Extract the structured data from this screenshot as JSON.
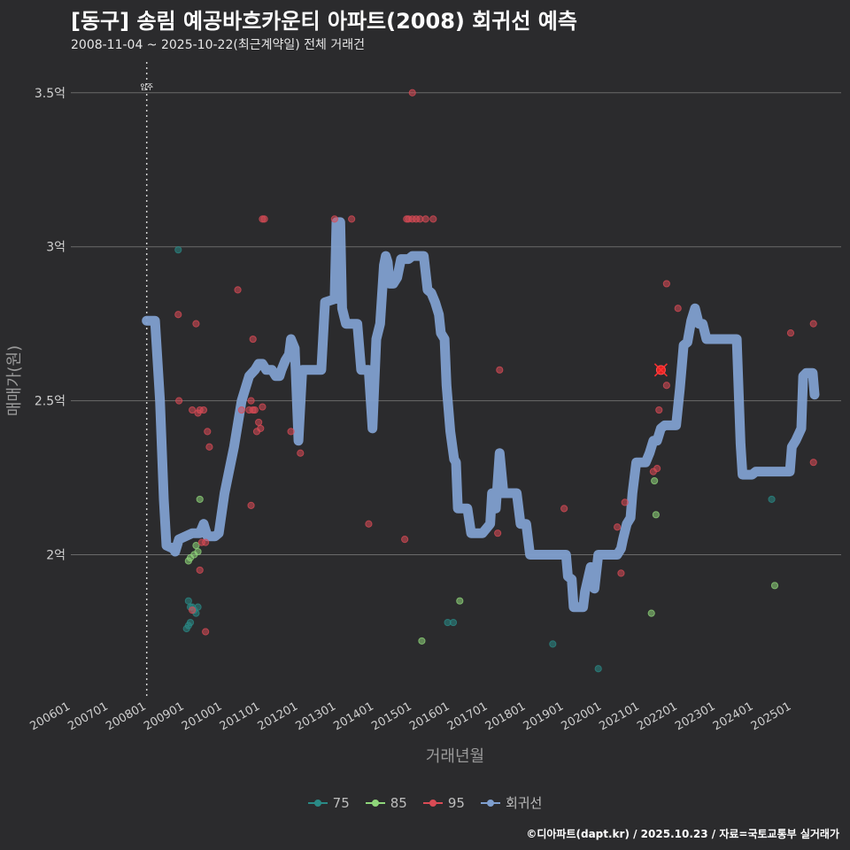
{
  "title": "[동구] 송림 예공바흐카운티 아파트(2008) 회귀선 예측",
  "subtitle": "2008-11-04 ~ 2025-10-22(최근계약일) 전체 거래건",
  "caption": "©디아파트(dapt.kr) / 2025.10.23 / 자료=국토교통부 실거래가",
  "colors": {
    "background": "#2b2b2d",
    "grid": "#6a6a6a",
    "s75": "#2a8a86",
    "s85": "#8fd67a",
    "s95": "#d94b55",
    "regression": "#7f9fcf"
  },
  "chart_data": {
    "type": "scatter",
    "title": "[동구] 송림 예공바흐카운티 아파트(2008) 회귀선 예측",
    "xlabel": "거래년월",
    "ylabel": "매매가(원)",
    "xlim": [
      2006.0,
      2026.3
    ],
    "ylim": [
      1.53,
      3.6
    ],
    "yticks": [
      {
        "v": 2.0,
        "label": "2억"
      },
      {
        "v": 2.5,
        "label": "2.5억"
      },
      {
        "v": 3.0,
        "label": "3억"
      },
      {
        "v": 3.5,
        "label": "3.5억"
      }
    ],
    "xticks": [
      {
        "v": 2006,
        "label": "200601"
      },
      {
        "v": 2007,
        "label": "200701"
      },
      {
        "v": 2008,
        "label": "200801"
      },
      {
        "v": 2009,
        "label": "200901"
      },
      {
        "v": 2010,
        "label": "201001"
      },
      {
        "v": 2011,
        "label": "201101"
      },
      {
        "v": 2012,
        "label": "201201"
      },
      {
        "v": 2013,
        "label": "201301"
      },
      {
        "v": 2014,
        "label": "201401"
      },
      {
        "v": 2015,
        "label": "201501"
      },
      {
        "v": 2016,
        "label": "201601"
      },
      {
        "v": 2017,
        "label": "201701"
      },
      {
        "v": 2018,
        "label": "201801"
      },
      {
        "v": 2019,
        "label": "201901"
      },
      {
        "v": 2020,
        "label": "202001"
      },
      {
        "v": 2021,
        "label": "202101"
      },
      {
        "v": 2022,
        "label": "202201"
      },
      {
        "v": 2023,
        "label": "202301"
      },
      {
        "v": 2024,
        "label": "202401"
      },
      {
        "v": 2025,
        "label": "202501"
      }
    ],
    "annotation": {
      "x": 2008.0,
      "label": "입주"
    },
    "highlight": {
      "x": 2021.55,
      "y": 2.6,
      "series": "95"
    },
    "series": [
      {
        "name": "75",
        "color": "#2a8a86",
        "points": [
          [
            2008.83,
            2.99
          ],
          [
            2009.1,
            1.85
          ],
          [
            2009.15,
            1.83
          ],
          [
            2009.2,
            1.83
          ],
          [
            2009.25,
            1.82
          ],
          [
            2009.35,
            1.83
          ],
          [
            2009.05,
            1.76
          ],
          [
            2009.1,
            1.77
          ],
          [
            2009.15,
            1.78
          ],
          [
            2009.3,
            1.81
          ],
          [
            2015.93,
            1.78
          ],
          [
            2016.08,
            1.78
          ],
          [
            2018.7,
            1.71
          ],
          [
            2019.9,
            1.63
          ],
          [
            2024.47,
            2.18
          ]
        ]
      },
      {
        "name": "85",
        "color": "#8fd67a",
        "points": [
          [
            2009.1,
            1.98
          ],
          [
            2009.15,
            1.99
          ],
          [
            2009.25,
            2.0
          ],
          [
            2009.3,
            2.03
          ],
          [
            2009.35,
            2.01
          ],
          [
            2009.4,
            2.18
          ],
          [
            2016.25,
            1.85
          ],
          [
            2015.25,
            1.72
          ],
          [
            2021.38,
            2.24
          ],
          [
            2021.42,
            2.13
          ],
          [
            2021.3,
            1.81
          ],
          [
            2024.55,
            1.9
          ]
        ]
      },
      {
        "name": "95",
        "color": "#d94b55",
        "points": [
          [
            2008.83,
            2.78
          ],
          [
            2008.85,
            2.5
          ],
          [
            2009.2,
            2.47
          ],
          [
            2009.35,
            2.46
          ],
          [
            2009.4,
            2.47
          ],
          [
            2009.5,
            2.47
          ],
          [
            2009.3,
            2.75
          ],
          [
            2009.6,
            2.4
          ],
          [
            2009.65,
            2.35
          ],
          [
            2009.45,
            2.04
          ],
          [
            2009.55,
            2.04
          ],
          [
            2009.4,
            1.95
          ],
          [
            2009.2,
            1.82
          ],
          [
            2009.55,
            1.75
          ],
          [
            2010.4,
            2.86
          ],
          [
            2010.5,
            2.47
          ],
          [
            2010.7,
            2.47
          ],
          [
            2010.75,
            2.5
          ],
          [
            2010.8,
            2.47
          ],
          [
            2010.85,
            2.47
          ],
          [
            2010.9,
            2.4
          ],
          [
            2010.95,
            2.43
          ],
          [
            2011.0,
            2.41
          ],
          [
            2011.05,
            2.48
          ],
          [
            2010.8,
            2.7
          ],
          [
            2010.75,
            2.16
          ],
          [
            2011.05,
            3.09
          ],
          [
            2011.1,
            3.09
          ],
          [
            2011.8,
            2.4
          ],
          [
            2012.05,
            2.33
          ],
          [
            2012.95,
            3.09
          ],
          [
            2013.4,
            3.09
          ],
          [
            2014.85,
            3.09
          ],
          [
            2014.9,
            3.09
          ],
          [
            2015.0,
            3.09
          ],
          [
            2015.1,
            3.09
          ],
          [
            2015.2,
            3.09
          ],
          [
            2015.35,
            3.09
          ],
          [
            2015.55,
            3.09
          ],
          [
            2015.0,
            3.5
          ],
          [
            2014.8,
            2.05
          ],
          [
            2013.85,
            2.1
          ],
          [
            2017.3,
            2.6
          ],
          [
            2017.25,
            2.07
          ],
          [
            2019.0,
            2.15
          ],
          [
            2020.4,
            2.09
          ],
          [
            2020.5,
            1.94
          ],
          [
            2020.6,
            2.17
          ],
          [
            2021.35,
            2.27
          ],
          [
            2021.45,
            2.28
          ],
          [
            2021.5,
            2.47
          ],
          [
            2021.7,
            2.88
          ],
          [
            2021.7,
            2.55
          ],
          [
            2021.55,
            2.6
          ],
          [
            2022.0,
            2.8
          ],
          [
            2024.97,
            2.72
          ],
          [
            2025.57,
            2.75
          ],
          [
            2025.57,
            2.3
          ]
        ]
      },
      {
        "name": "회귀선",
        "color": "#7f9fcf",
        "line": [
          [
            2008.0,
            2.76
          ],
          [
            2008.22,
            2.76
          ],
          [
            2008.35,
            2.5
          ],
          [
            2008.45,
            2.18
          ],
          [
            2008.52,
            2.03
          ],
          [
            2008.7,
            2.02
          ],
          [
            2008.75,
            2.01
          ],
          [
            2008.85,
            2.05
          ],
          [
            2009.2,
            2.07
          ],
          [
            2009.4,
            2.07
          ],
          [
            2009.5,
            2.1
          ],
          [
            2009.6,
            2.06
          ],
          [
            2009.8,
            2.06
          ],
          [
            2009.9,
            2.07
          ],
          [
            2010.05,
            2.2
          ],
          [
            2010.3,
            2.35
          ],
          [
            2010.5,
            2.5
          ],
          [
            2010.7,
            2.58
          ],
          [
            2010.85,
            2.6
          ],
          [
            2010.95,
            2.62
          ],
          [
            2011.05,
            2.62
          ],
          [
            2011.15,
            2.6
          ],
          [
            2011.3,
            2.6
          ],
          [
            2011.4,
            2.58
          ],
          [
            2011.5,
            2.58
          ],
          [
            2011.55,
            2.6
          ],
          [
            2011.65,
            2.63
          ],
          [
            2011.75,
            2.65
          ],
          [
            2011.8,
            2.7
          ],
          [
            2011.9,
            2.67
          ],
          [
            2012.0,
            2.37
          ],
          [
            2012.1,
            2.6
          ],
          [
            2012.3,
            2.6
          ],
          [
            2012.6,
            2.6
          ],
          [
            2012.7,
            2.82
          ],
          [
            2012.95,
            2.83
          ],
          [
            2013.0,
            3.08
          ],
          [
            2013.1,
            3.08
          ],
          [
            2013.15,
            2.8
          ],
          [
            2013.25,
            2.75
          ],
          [
            2013.55,
            2.75
          ],
          [
            2013.65,
            2.6
          ],
          [
            2013.85,
            2.6
          ],
          [
            2013.95,
            2.41
          ],
          [
            2014.05,
            2.7
          ],
          [
            2014.15,
            2.75
          ],
          [
            2014.25,
            2.94
          ],
          [
            2014.3,
            2.97
          ],
          [
            2014.35,
            2.95
          ],
          [
            2014.4,
            2.88
          ],
          [
            2014.5,
            2.88
          ],
          [
            2014.6,
            2.9
          ],
          [
            2014.7,
            2.96
          ],
          [
            2014.9,
            2.96
          ],
          [
            2015.0,
            2.97
          ],
          [
            2015.2,
            2.97
          ],
          [
            2015.3,
            2.97
          ],
          [
            2015.4,
            2.86
          ],
          [
            2015.5,
            2.85
          ],
          [
            2015.6,
            2.82
          ],
          [
            2015.7,
            2.78
          ],
          [
            2015.75,
            2.72
          ],
          [
            2015.85,
            2.7
          ],
          [
            2015.9,
            2.55
          ],
          [
            2016.0,
            2.4
          ],
          [
            2016.1,
            2.31
          ],
          [
            2016.15,
            2.3
          ],
          [
            2016.2,
            2.15
          ],
          [
            2016.35,
            2.15
          ],
          [
            2016.45,
            2.15
          ],
          [
            2016.55,
            2.07
          ],
          [
            2016.85,
            2.07
          ],
          [
            2017.05,
            2.1
          ],
          [
            2017.1,
            2.2
          ],
          [
            2017.2,
            2.15
          ],
          [
            2017.3,
            2.33
          ],
          [
            2017.4,
            2.2
          ],
          [
            2017.75,
            2.2
          ],
          [
            2017.85,
            2.1
          ],
          [
            2018.0,
            2.1
          ],
          [
            2018.1,
            2.0
          ],
          [
            2018.5,
            2.0
          ],
          [
            2018.8,
            2.0
          ],
          [
            2019.05,
            2.0
          ],
          [
            2019.1,
            1.93
          ],
          [
            2019.2,
            1.92
          ],
          [
            2019.25,
            1.83
          ],
          [
            2019.5,
            1.83
          ],
          [
            2019.55,
            1.88
          ],
          [
            2019.7,
            1.96
          ],
          [
            2019.8,
            1.89
          ],
          [
            2019.9,
            2.0
          ],
          [
            2020.2,
            2.0
          ],
          [
            2020.4,
            2.0
          ],
          [
            2020.5,
            2.02
          ],
          [
            2020.55,
            2.05
          ],
          [
            2020.65,
            2.1
          ],
          [
            2020.75,
            2.12
          ],
          [
            2020.8,
            2.2
          ],
          [
            2020.9,
            2.3
          ],
          [
            2021.15,
            2.3
          ],
          [
            2021.25,
            2.33
          ],
          [
            2021.35,
            2.37
          ],
          [
            2021.45,
            2.37
          ],
          [
            2021.55,
            2.41
          ],
          [
            2021.65,
            2.42
          ],
          [
            2021.95,
            2.42
          ],
          [
            2022.05,
            2.54
          ],
          [
            2022.15,
            2.68
          ],
          [
            2022.25,
            2.69
          ],
          [
            2022.35,
            2.76
          ],
          [
            2022.45,
            2.8
          ],
          [
            2022.55,
            2.75
          ],
          [
            2022.65,
            2.75
          ],
          [
            2022.75,
            2.7
          ],
          [
            2023.55,
            2.7
          ],
          [
            2023.65,
            2.36
          ],
          [
            2023.7,
            2.26
          ],
          [
            2023.95,
            2.26
          ],
          [
            2024.05,
            2.27
          ],
          [
            2024.3,
            2.27
          ],
          [
            2024.95,
            2.27
          ],
          [
            2025.0,
            2.35
          ],
          [
            2025.1,
            2.37
          ],
          [
            2025.25,
            2.41
          ],
          [
            2025.3,
            2.58
          ],
          [
            2025.38,
            2.59
          ],
          [
            2025.55,
            2.59
          ],
          [
            2025.6,
            2.52
          ]
        ]
      }
    ],
    "legend": [
      "75",
      "85",
      "95",
      "회귀선"
    ],
    "legend_position": "bottom"
  }
}
